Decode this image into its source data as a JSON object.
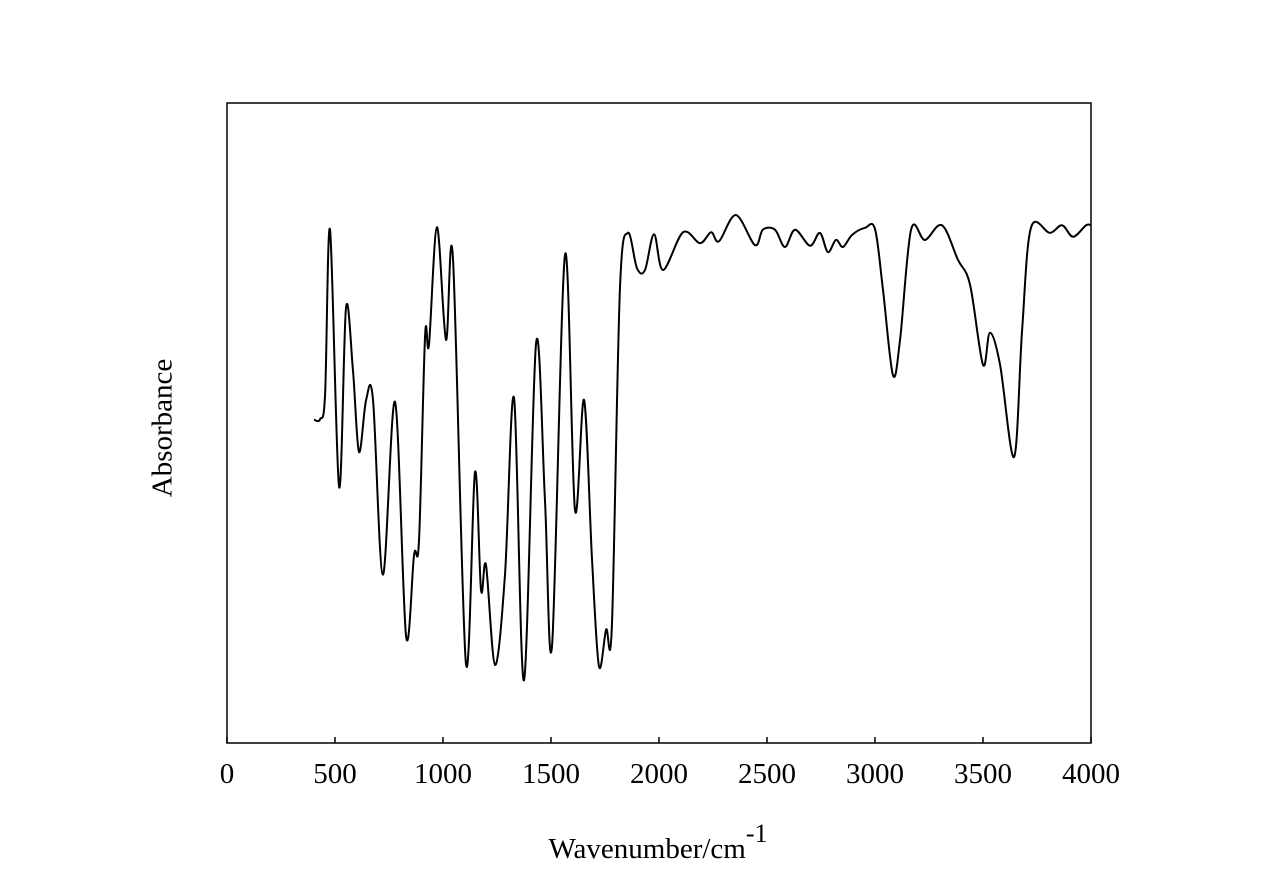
{
  "chart_data": {
    "type": "line",
    "x_label": {
      "text": "Wavenumber/cm",
      "superscript": "-1"
    },
    "y_label": "Absorbance",
    "x": [
      403,
      431,
      454,
      477,
      519,
      551,
      583,
      611,
      644,
      676,
      722,
      778,
      829,
      866,
      889,
      917,
      935,
      972,
      1014,
      1046,
      1106,
      1148,
      1176,
      1199,
      1241,
      1287,
      1329,
      1375,
      1431,
      1472,
      1505,
      1565,
      1611,
      1653,
      1690,
      1722,
      1755,
      1782,
      1819,
      1856,
      1898,
      1935,
      1977,
      2019,
      2111,
      2190,
      2241,
      2278,
      2356,
      2444,
      2481,
      2537,
      2583,
      2630,
      2699,
      2745,
      2782,
      2819,
      2852,
      2894,
      2954,
      3000,
      3037,
      3083,
      3116,
      3167,
      3231,
      3310,
      3384,
      3440,
      3500,
      3532,
      3579,
      3644,
      3681,
      3722,
      3810,
      3866,
      3917,
      3977,
      4000
    ],
    "series": [
      {
        "color": "#000000",
        "values": [
          0.505,
          0.506,
          0.544,
          0.802,
          0.4,
          0.68,
          0.583,
          0.455,
          0.536,
          0.536,
          0.263,
          0.533,
          0.167,
          0.294,
          0.317,
          0.636,
          0.622,
          0.806,
          0.63,
          0.758,
          0.125,
          0.423,
          0.239,
          0.278,
          0.122,
          0.263,
          0.539,
          0.098,
          0.625,
          0.38,
          0.153,
          0.763,
          0.364,
          0.536,
          0.286,
          0.12,
          0.177,
          0.184,
          0.708,
          0.797,
          0.742,
          0.739,
          0.795,
          0.739,
          0.798,
          0.781,
          0.798,
          0.784,
          0.825,
          0.778,
          0.802,
          0.802,
          0.775,
          0.802,
          0.777,
          0.797,
          0.767,
          0.786,
          0.775,
          0.794,
          0.805,
          0.803,
          0.708,
          0.575,
          0.63,
          0.802,
          0.786,
          0.809,
          0.755,
          0.716,
          0.591,
          0.641,
          0.591,
          0.447,
          0.645,
          0.805,
          0.797,
          0.809,
          0.791,
          0.809,
          0.809
        ]
      }
    ],
    "xlim": [
      0,
      4000
    ],
    "xticks": [
      0,
      500,
      1000,
      1500,
      2000,
      2500,
      3000,
      3500,
      4000
    ],
    "ylim": [
      0,
      1
    ]
  }
}
